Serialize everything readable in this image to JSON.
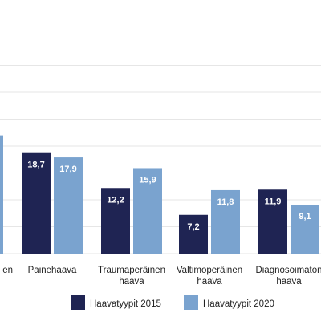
{
  "chart_data": {
    "type": "bar",
    "categories": [
      [
        "…en"
      ],
      [
        "Painehaava"
      ],
      [
        "Traumaperäinen",
        "haava"
      ],
      [
        "Valtimoperäinen",
        "haava"
      ],
      [
        "Diagnosoimaton",
        "haava"
      ]
    ],
    "series": [
      {
        "name": "Haavatyypit 2015",
        "color": "#1f2453",
        "values": [
          null,
          18.7,
          12.2,
          7.2,
          11.9
        ],
        "labels": [
          null,
          "18,7",
          "12,2",
          "7,2",
          "11,9"
        ]
      },
      {
        "name": "Haavatyypit 2020",
        "color": "#7aa3cf",
        "values": [
          null,
          17.9,
          15.9,
          11.8,
          9.1
        ],
        "labels": [
          null,
          "17,9",
          "15,9",
          "11,8",
          "9,1"
        ]
      }
    ],
    "partial_visible_bar": {
      "series": "Haavatyypit 2020",
      "category_index": 0,
      "value": 22
    },
    "ylim": [
      0,
      35
    ],
    "grid": true,
    "legend": "bottom-center",
    "grid_color": "#e6e6e6"
  }
}
